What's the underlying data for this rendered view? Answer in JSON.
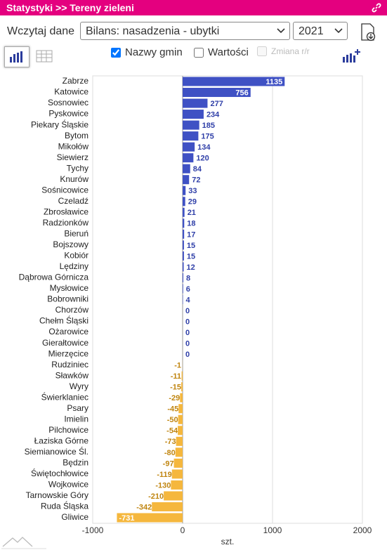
{
  "header": {
    "title": "Statystyki >> Tereny zieleni"
  },
  "controls": {
    "load_label": "Wczytaj dane",
    "dataset": "Bilans: nasadzenia - ubytki",
    "year": "2021",
    "checkboxes": [
      {
        "label": "Nazwy gmin",
        "checked": true,
        "disabled": false
      },
      {
        "label": "Wartości",
        "checked": false,
        "disabled": false
      },
      {
        "label": "Zmiana r/r",
        "checked": false,
        "disabled": true
      }
    ]
  },
  "chart_data": {
    "type": "bar",
    "orientation": "horizontal",
    "categories": [
      "Zabrze",
      "Katowice",
      "Sosnowiec",
      "Pyskowice",
      "Piekary Śląskie",
      "Bytom",
      "Mikołów",
      "Siewierz",
      "Tychy",
      "Knurów",
      "Sośnicowice",
      "Czeladź",
      "Zbrosławice",
      "Radzionków",
      "Bieruń",
      "Bojszowy",
      "Kobiór",
      "Lędziny",
      "Dąbrowa Górnicza",
      "Mysłowice",
      "Bobrowniki",
      "Chorzów",
      "Chełm Śląski",
      "Ożarowice",
      "Gierałtowice",
      "Mierzęcice",
      "Rudziniec",
      "Sławków",
      "Wyry",
      "Świerklaniec",
      "Psary",
      "Imielin",
      "Pilchowice",
      "Łaziska Górne",
      "Siemianowice Śl.",
      "Będzin",
      "Świętochłowice",
      "Wojkowice",
      "Tarnowskie Góry",
      "Ruda Śląska",
      "Gliwice"
    ],
    "values": [
      1135,
      756,
      277,
      234,
      185,
      175,
      134,
      120,
      84,
      72,
      33,
      29,
      21,
      18,
      17,
      15,
      15,
      12,
      8,
      6,
      4,
      0,
      0,
      0,
      0,
      0,
      -1,
      -11,
      -15,
      -29,
      -45,
      -50,
      -54,
      -73,
      -80,
      -97,
      -119,
      -130,
      -210,
      -342,
      -731
    ],
    "positive_color": "#3f51c4",
    "negative_color": "#f5b73d",
    "xlim": [
      -1000,
      2000
    ],
    "xticks": [
      -1000,
      0,
      1000,
      2000
    ],
    "xlabel": "szt.",
    "grid": true
  }
}
